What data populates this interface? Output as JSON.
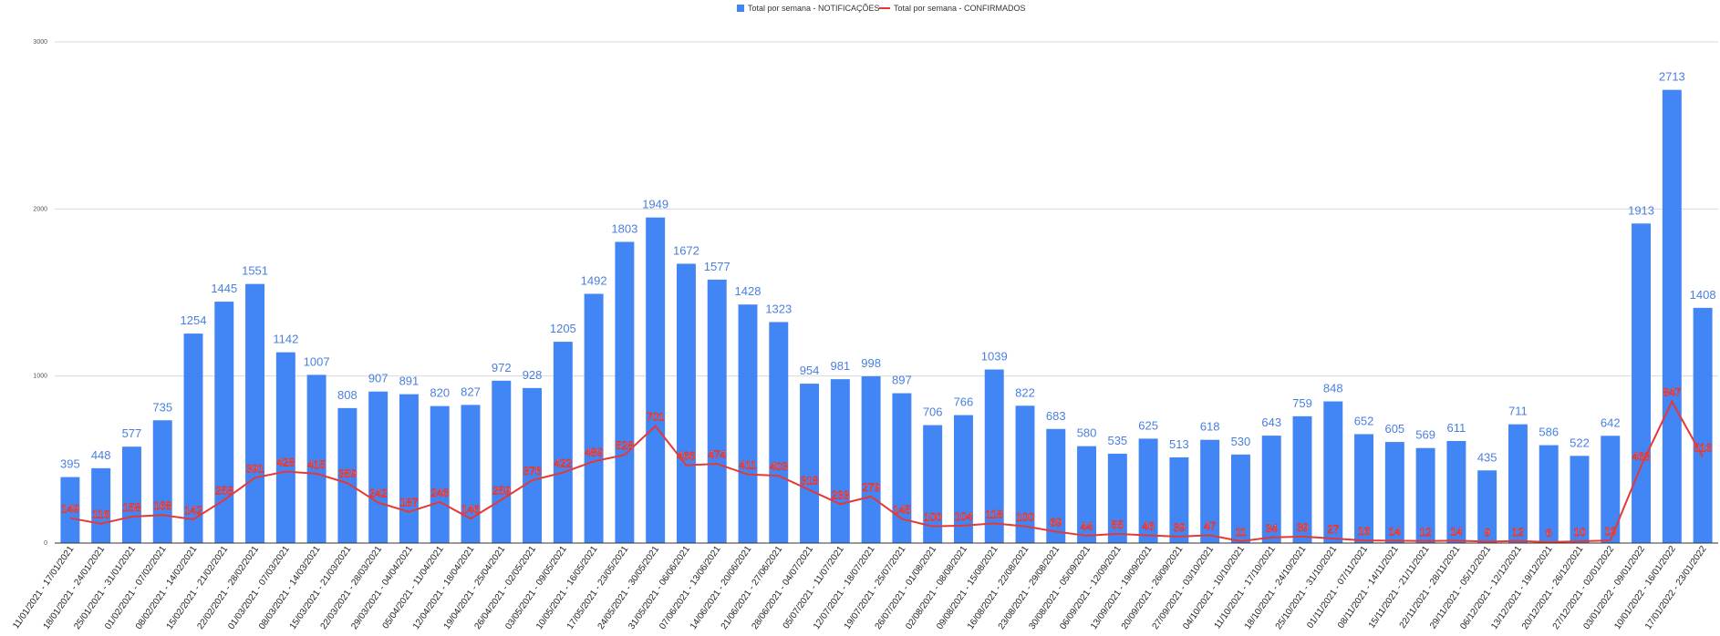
{
  "chart_data": {
    "type": "bar",
    "categories": [
      "11/01/2021 - 17/01/2021",
      "18/01/2021 - 24/01/2021",
      "25/01/2021 - 31/01/2021",
      "01/02/2021 - 07/02/2021",
      "08/02/2021 - 14/02/2021",
      "15/02/2021 - 21/02/2021",
      "22/02/2021 - 28/02/2021",
      "01/03/2021 - 07/03/2021",
      "08/03/2021 - 14/03/2021",
      "15/03/2021 - 21/03/2021",
      "22/03/2021 - 28/03/2021",
      "29/03/2021 - 04/04/2021",
      "05/04/2021 - 11/04/2021",
      "12/04/2021 - 18/04/2021",
      "19/04/2021 - 25/04/2021",
      "26/04/2021 - 02/05/2021",
      "03/05/2021 - 09/05/2021",
      "10/05/2021 - 16/05/2021",
      "17/05/2021 - 23/05/2021",
      "24/05/2021 - 30/05/2021",
      "31/05/2021 - 06/06/2021",
      "07/06/2021 - 13/06/2021",
      "14/06/2021 - 20/06/2021",
      "21/06/2021 - 27/06/2021",
      "28/06/2021 - 04/07/2021",
      "05/07/2021 - 11/07/2021",
      "12/07/2021 - 18/07/2021",
      "19/07/2021 - 25/07/2021",
      "26/07/2021 - 01/08/2021",
      "02/08/2021 - 08/08/2021",
      "09/08/2021 - 15/08/2021",
      "16/08/2021 - 22/08/2021",
      "23/08/2021 - 29/08/2021",
      "30/08/2021 - 05/09/2021",
      "06/09/2021 - 12/09/2021",
      "13/09/2021 - 19/09/2021",
      "20/09/2021 - 26/09/2021",
      "27/09/2021 - 03/10/2021",
      "04/10/2021 - 10/10/2021",
      "11/10/2021 - 17/10/2021",
      "18/10/2021 - 24/10/2021",
      "25/10/2021 - 31/10/2021",
      "01/11/2021 - 07/11/2021",
      "08/11/2021 - 14/11/2021",
      "15/11/2021 - 21/11/2021",
      "22/11/2021 - 28/11/2021",
      "29/11/2021 - 05/12/2021",
      "06/12/2021 - 12/12/2021",
      "13/12/2021 - 19/12/2021",
      "20/12/2021 - 26/12/2021",
      "27/12/2021 - 02/01/2022",
      "03/01/2022 - 09/01/2022",
      "10/01/2022 - 16/01/2022",
      "17/01/2022 - 23/01/2022"
    ],
    "series": [
      {
        "name": "Total por semana - NOTIFICAÇÕES",
        "kind": "bar",
        "color": "#4285f4",
        "values": [
          395,
          448,
          577,
          735,
          1254,
          1445,
          1551,
          1142,
          1007,
          808,
          907,
          891,
          820,
          827,
          972,
          928,
          1205,
          1492,
          1803,
          1949,
          1672,
          1577,
          1428,
          1323,
          954,
          981,
          998,
          897,
          706,
          766,
          1039,
          822,
          683,
          580,
          535,
          625,
          513,
          618,
          530,
          643,
          759,
          848,
          652,
          605,
          569,
          611,
          435,
          711,
          586,
          522,
          642,
          1913,
          2713,
          1408
        ]
      },
      {
        "name": "Total por semana - CONFIRMADOS",
        "kind": "line",
        "color": "#e53935",
        "values": [
          149,
          116,
          158,
          168,
          142,
          258,
          391,
          428,
          415,
          359,
          242,
          187,
          246,
          146,
          259,
          376,
          422,
          489,
          528,
          701,
          466,
          474,
          411,
          403,
          318,
          233,
          279,
          145,
          100,
          104,
          118,
          100,
          69,
          44,
          55,
          46,
          39,
          47,
          11,
          34,
          39,
          27,
          16,
          14,
          12,
          14,
          9,
          12,
          6,
          10,
          16,
          463,
          847,
          516
        ]
      }
    ],
    "yticks": [
      "0",
      "1000",
      "2000",
      "3000"
    ],
    "ylim": [
      0,
      3000
    ],
    "grid": true,
    "legend_position": "top-center"
  }
}
